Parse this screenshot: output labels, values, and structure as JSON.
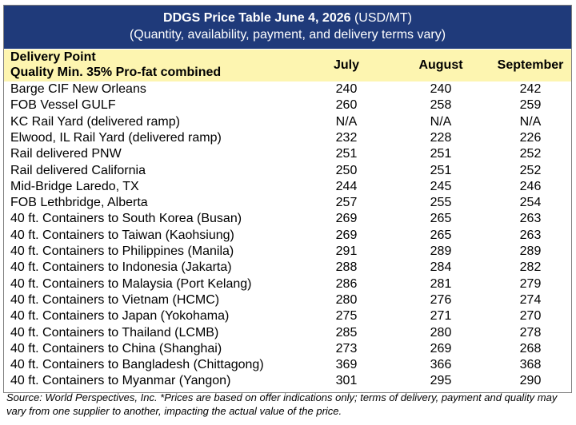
{
  "header": {
    "title": "DDGS Price Table June 4, 2026",
    "unit": "(USD/MT)",
    "subtitle": "(Quantity, availability, payment, and delivery terms vary)"
  },
  "table": {
    "columns": [
      [
        "Delivery Point",
        "Quality Min. 35% Pro-fat combined"
      ],
      "July",
      "August",
      "September"
    ],
    "rows": [
      [
        "Barge CIF New Orleans",
        240,
        240,
        242
      ],
      [
        "FOB Vessel GULF",
        260,
        258,
        259
      ],
      [
        "KC Rail Yard (delivered ramp)",
        "N/A",
        "N/A",
        "N/A"
      ],
      [
        "Elwood, IL Rail Yard (delivered ramp)",
        232,
        228,
        226
      ],
      [
        "Rail delivered PNW",
        251,
        251,
        252
      ],
      [
        "Rail delivered California",
        250,
        251,
        252
      ],
      [
        "Mid-Bridge Laredo, TX",
        244,
        245,
        246
      ],
      [
        "FOB Lethbridge, Alberta",
        257,
        255,
        254
      ],
      [
        "40 ft. Containers to South Korea (Busan)",
        269,
        265,
        263
      ],
      [
        "40 ft. Containers to Taiwan (Kaohsiung)",
        269,
        265,
        263
      ],
      [
        "40 ft. Containers to Philippines (Manila)",
        291,
        289,
        289
      ],
      [
        "40 ft. Containers to Indonesia (Jakarta)",
        288,
        284,
        282
      ],
      [
        "40 ft. Containers to Malaysia (Port Kelang)",
        286,
        281,
        279
      ],
      [
        "40 ft. Containers to Vietnam (HCMC)",
        280,
        276,
        274
      ],
      [
        "40 ft. Containers to Japan (Yokohama)",
        275,
        271,
        270
      ],
      [
        "40 ft. Containers to Thailand (LCMB)",
        285,
        280,
        278
      ],
      [
        "40 ft. Containers to China (Shanghai)",
        273,
        269,
        268
      ],
      [
        "40 ft. Containers to Bangladesh (Chittagong)",
        369,
        366,
        368
      ],
      [
        "40 ft. Containers to Myanmar (Yangon)",
        301,
        295,
        290
      ]
    ]
  },
  "footer": {
    "source": "Source: World Perspectives, Inc. *Prices are based on offer indications only; terms of delivery, payment and quality may vary from one supplier to another, impacting the actual value of the price."
  }
}
